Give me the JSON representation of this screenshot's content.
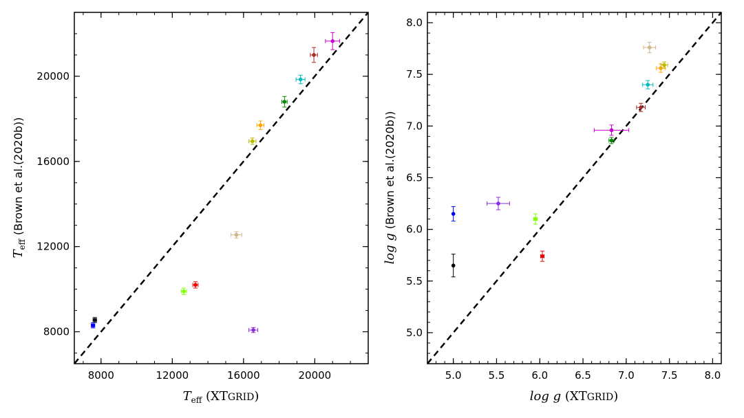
{
  "chart_data": [
    {
      "type": "scatter",
      "xlabel": {
        "var": "T",
        "sub": "eff",
        "note": "XT",
        "note_sc": "GRID"
      },
      "ylabel": {
        "var": "T",
        "sub": "eff",
        "note": "(Brown et al.(2020b))"
      },
      "xlim": [
        6500,
        23000
      ],
      "ylim": [
        6500,
        23000
      ],
      "xticks": [
        8000,
        12000,
        16000,
        20000
      ],
      "yticks": [
        8000,
        12000,
        16000,
        20000
      ],
      "xtick_labels": [
        "8000",
        "12000",
        "16000",
        "20000"
      ],
      "ytick_labels": [
        "8000",
        "12000",
        "16000",
        "20000"
      ],
      "x_minor_step": 1000,
      "y_minor_step": 1000,
      "identity_line": true,
      "points": [
        {
          "color": "#000000",
          "x": 7650,
          "y": 8550,
          "xerr": 100,
          "yerr": 120
        },
        {
          "color": "#0000ee",
          "x": 7550,
          "y": 8300,
          "xerr": 100,
          "yerr": 120
        },
        {
          "color": "#7fff00",
          "x": 12650,
          "y": 9900,
          "xerr": 150,
          "yerr": 150
        },
        {
          "color": "#ee0000",
          "x": 13300,
          "y": 10200,
          "xerr": 150,
          "yerr": 150
        },
        {
          "color": "#8a2be2",
          "x": 16550,
          "y": 8080,
          "xerr": 250,
          "yerr": 120
        },
        {
          "color": "#d2b48c",
          "x": 15600,
          "y": 12550,
          "xerr": 300,
          "yerr": 150
        },
        {
          "color": "#bbbb00",
          "x": 16500,
          "y": 16950,
          "xerr": 200,
          "yerr": 150
        },
        {
          "color": "#ffa500",
          "x": 16950,
          "y": 17700,
          "xerr": 200,
          "yerr": 200
        },
        {
          "color": "#008800",
          "x": 18300,
          "y": 18800,
          "xerr": 150,
          "yerr": 250
        },
        {
          "color": "#00bbbb",
          "x": 19200,
          "y": 19850,
          "xerr": 250,
          "yerr": 200
        },
        {
          "color": "#a52a2a",
          "x": 19950,
          "y": 21000,
          "xerr": 200,
          "yerr": 350
        },
        {
          "color": "#cc00cc",
          "x": 21000,
          "y": 21650,
          "xerr": 400,
          "yerr": 400
        }
      ]
    },
    {
      "type": "scatter",
      "xlabel": {
        "var": "log g",
        "note": "XT",
        "note_sc": "GRID"
      },
      "ylabel": {
        "var": "log g",
        "note": "(Brown et al.(2020b))"
      },
      "xlim": [
        4.7,
        8.1
      ],
      "ylim": [
        4.7,
        8.1
      ],
      "xticks": [
        5.0,
        5.5,
        6.0,
        6.5,
        7.0,
        7.5,
        8.0
      ],
      "yticks": [
        5.0,
        5.5,
        6.0,
        6.5,
        7.0,
        7.5,
        8.0
      ],
      "xtick_labels": [
        "5.0",
        "5.5",
        "6.0",
        "6.5",
        "7.0",
        "7.5",
        "8.0"
      ],
      "ytick_labels": [
        "5.0",
        "5.5",
        "6.0",
        "6.5",
        "7.0",
        "7.5",
        "8.0"
      ],
      "x_minor_step": 0.1,
      "y_minor_step": 0.1,
      "identity_line": true,
      "points": [
        {
          "color": "#000000",
          "x": 5.0,
          "y": 5.65,
          "xerr": 0,
          "yerr": 0.11
        },
        {
          "color": "#0000ee",
          "x": 5.0,
          "y": 6.15,
          "xerr": 0,
          "yerr": 0.07
        },
        {
          "color": "#8a2be2",
          "x": 5.52,
          "y": 6.25,
          "xerr": 0.13,
          "yerr": 0.06
        },
        {
          "color": "#7fff00",
          "x": 5.95,
          "y": 6.1,
          "xerr": 0.02,
          "yerr": 0.05
        },
        {
          "color": "#ee0000",
          "x": 6.03,
          "y": 5.74,
          "xerr": 0.02,
          "yerr": 0.05
        },
        {
          "color": "#cc00cc",
          "x": 6.83,
          "y": 6.96,
          "xerr": 0.2,
          "yerr": 0.05
        },
        {
          "color": "#008800",
          "x": 6.83,
          "y": 6.86,
          "xerr": 0.03,
          "yerr": 0.03
        },
        {
          "color": "#a52a2a",
          "x": 7.17,
          "y": 7.18,
          "xerr": 0.05,
          "yerr": 0.04
        },
        {
          "color": "#00bbbb",
          "x": 7.25,
          "y": 7.4,
          "xerr": 0.06,
          "yerr": 0.04
        },
        {
          "color": "#d2b48c",
          "x": 7.27,
          "y": 7.76,
          "xerr": 0.07,
          "yerr": 0.05
        },
        {
          "color": "#ffa500",
          "x": 7.4,
          "y": 7.56,
          "xerr": 0.05,
          "yerr": 0.04
        },
        {
          "color": "#bbbb00",
          "x": 7.44,
          "y": 7.59,
          "xerr": 0.04,
          "yerr": 0.03
        }
      ]
    }
  ]
}
